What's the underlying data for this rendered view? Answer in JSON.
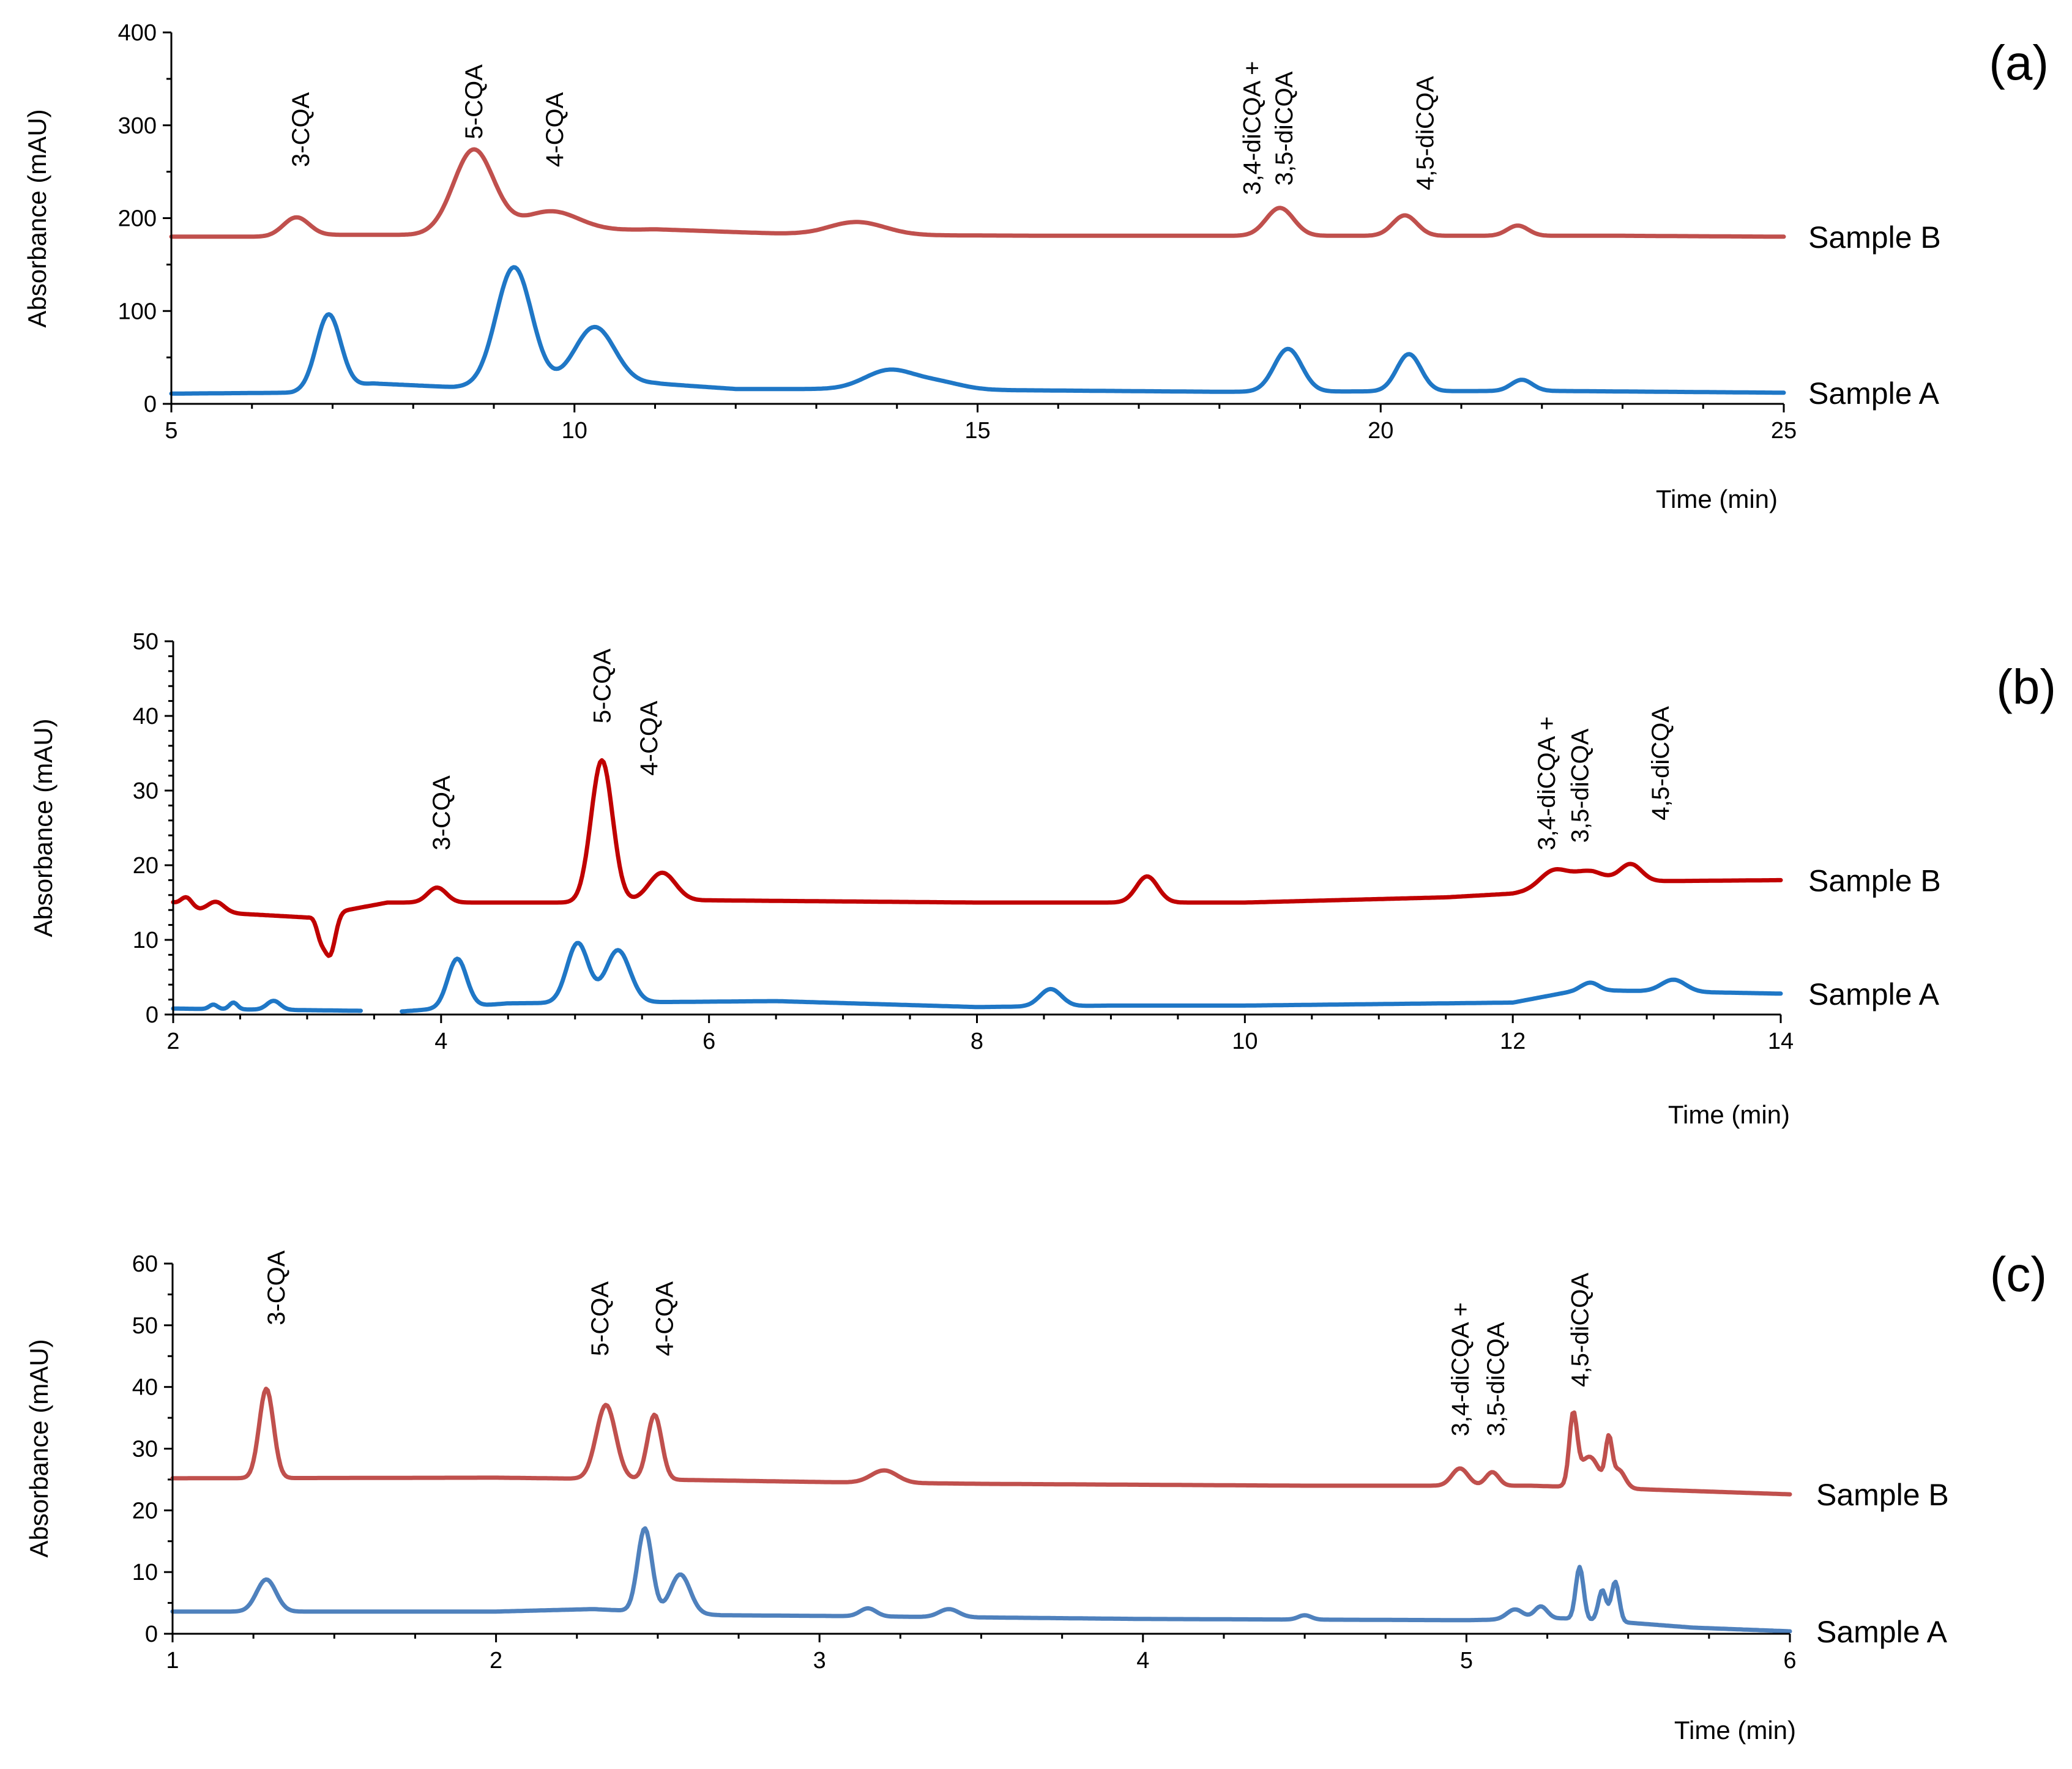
{
  "chart_data": [
    {
      "type": "line",
      "panel_label": "(a)",
      "xlabel": "Time (min)",
      "ylabel": "Absorbance (mAU)",
      "xlim": [
        5,
        25
      ],
      "ylim": [
        0,
        400
      ],
      "xticks": [
        5,
        10,
        15,
        20,
        25
      ],
      "yticks": [
        0,
        100,
        200,
        300,
        400
      ],
      "x_minor_step": 1,
      "y_minor_step": 50,
      "series": [
        {
          "name": "Sample B",
          "color": "#c0504d",
          "baseline": [
            [
              5,
              180
            ],
            [
              6.2,
              180
            ],
            [
              7,
              182
            ],
            [
              8,
              182
            ],
            [
              11,
              188
            ],
            [
              13,
              182
            ],
            [
              16,
              181
            ],
            [
              20,
              181
            ],
            [
              23,
              181
            ],
            [
              25,
              180
            ]
          ],
          "peaks": [
            {
              "t": 6.55,
              "h": 20,
              "w": 0.16
            },
            {
              "t": 8.75,
              "h": 90,
              "w": 0.25
            },
            {
              "t": 9.7,
              "h": 22,
              "w": 0.35
            },
            {
              "t": 13.5,
              "h": 14,
              "w": 0.35
            },
            {
              "t": 18.75,
              "h": 30,
              "w": 0.17
            },
            {
              "t": 20.3,
              "h": 22,
              "w": 0.15
            },
            {
              "t": 21.7,
              "h": 11,
              "w": 0.13
            }
          ]
        },
        {
          "name": "Sample A",
          "color": "#1f77c6",
          "baseline": [
            [
              5,
              11
            ],
            [
              6.5,
              12
            ],
            [
              7.5,
              22
            ],
            [
              8.5,
              18
            ],
            [
              11,
              22
            ],
            [
              12,
              16
            ],
            [
              13.5,
              16
            ],
            [
              15,
              15
            ],
            [
              18,
              13
            ],
            [
              22,
              14
            ],
            [
              25,
              12
            ]
          ],
          "peaks": [
            {
              "t": 6.95,
              "h": 80,
              "w": 0.15
            },
            {
              "t": 9.25,
              "h": 128,
              "w": 0.22
            },
            {
              "t": 10.25,
              "h": 62,
              "w": 0.25
            },
            {
              "t": 13.9,
              "h": 20,
              "w": 0.3
            },
            {
              "t": 14.5,
              "h": 8,
              "w": 0.3
            },
            {
              "t": 18.85,
              "h": 46,
              "w": 0.17
            },
            {
              "t": 20.35,
              "h": 40,
              "w": 0.15
            },
            {
              "t": 21.75,
              "h": 12,
              "w": 0.13
            }
          ]
        }
      ],
      "annotations": [
        {
          "text": "3-CQA",
          "x": 6.6,
          "y": 255
        },
        {
          "text": "5-CQA",
          "x": 8.75,
          "y": 285
        },
        {
          "text": "4-CQA",
          "x": 9.75,
          "y": 255
        },
        {
          "text": "3,4-diCQA +",
          "x": 18.4,
          "y": 225
        },
        {
          "text": "3,5-diCQA",
          "x": 18.8,
          "y": 235
        },
        {
          "text": "4,5-diCQA",
          "x": 20.55,
          "y": 230
        }
      ]
    },
    {
      "type": "line",
      "panel_label": "(b)",
      "xlabel": "Time (min)",
      "ylabel": "Absorbance (mAU)",
      "xlim": [
        2,
        14
      ],
      "ylim": [
        0,
        50
      ],
      "xticks": [
        2,
        4,
        6,
        8,
        10,
        12,
        14
      ],
      "yticks": [
        0,
        10,
        20,
        30,
        40,
        50
      ],
      "x_minor_step": 0.5,
      "y_minor_step": 2,
      "series": [
        {
          "name": "Sample B",
          "color": "#c00000",
          "baseline": [
            [
              2,
              15
            ],
            [
              2.2,
              14
            ],
            [
              2.5,
              13.5
            ],
            [
              3,
              13
            ],
            [
              3.3,
              14
            ],
            [
              3.6,
              15
            ],
            [
              5,
              15
            ],
            [
              6,
              15.3
            ],
            [
              8,
              15
            ],
            [
              9,
              15
            ],
            [
              10,
              15
            ],
            [
              11.5,
              15.7
            ],
            [
              12,
              16.2
            ],
            [
              12.6,
              17.8
            ],
            [
              14,
              18
            ]
          ],
          "peaks": [
            {
              "t": 2.1,
              "h": 1.2,
              "w": 0.04
            },
            {
              "t": 2.32,
              "h": 1.3,
              "w": 0.06
            },
            {
              "t": 3.1,
              "h": -2.5,
              "w": 0.03
            },
            {
              "t": 3.17,
              "h": -5.5,
              "w": 0.04
            },
            {
              "t": 3.97,
              "h": 2,
              "w": 0.07
            },
            {
              "t": 5.2,
              "h": 19,
              "w": 0.08
            },
            {
              "t": 5.65,
              "h": 3.8,
              "w": 0.1
            },
            {
              "t": 9.27,
              "h": 3.5,
              "w": 0.08
            },
            {
              "t": 12.3,
              "h": 2.2,
              "w": 0.1
            },
            {
              "t": 12.55,
              "h": 1.5,
              "w": 0.12
            },
            {
              "t": 12.88,
              "h": 2.3,
              "w": 0.08
            }
          ]
        },
        {
          "name": "Sample A",
          "color": "#1f77c6",
          "gap": [
            3.4,
            3.7
          ],
          "baseline": [
            [
              2,
              0.8
            ],
            [
              3.4,
              0.5
            ],
            [
              3.7,
              0.4
            ],
            [
              4.5,
              1.5
            ],
            [
              6.5,
              1.8
            ],
            [
              8,
              1
            ],
            [
              9,
              1.2
            ],
            [
              10,
              1.2
            ],
            [
              12,
              1.6
            ],
            [
              12.5,
              3.3
            ],
            [
              14,
              2.8
            ]
          ],
          "peaks": [
            {
              "t": 2.3,
              "h": 0.6,
              "w": 0.03
            },
            {
              "t": 2.45,
              "h": 0.9,
              "w": 0.03
            },
            {
              "t": 2.75,
              "h": 1.2,
              "w": 0.05
            },
            {
              "t": 4.12,
              "h": 6.5,
              "w": 0.07
            },
            {
              "t": 5.02,
              "h": 8,
              "w": 0.08
            },
            {
              "t": 5.32,
              "h": 7,
              "w": 0.09
            },
            {
              "t": 8.55,
              "h": 2.3,
              "w": 0.08
            },
            {
              "t": 12.58,
              "h": 1,
              "w": 0.06
            },
            {
              "t": 13.2,
              "h": 1.6,
              "w": 0.09
            }
          ]
        }
      ],
      "annotations": [
        {
          "text": "3-CQA",
          "x": 4.0,
          "y": 22
        },
        {
          "text": "5-CQA",
          "x": 5.2,
          "y": 39
        },
        {
          "text": "4-CQA",
          "x": 5.55,
          "y": 32
        },
        {
          "text": "3,4-diCQA +",
          "x": 12.25,
          "y": 22
        },
        {
          "text": "3,5-diCQA",
          "x": 12.5,
          "y": 23
        },
        {
          "text": "4,5-diCQA",
          "x": 13.1,
          "y": 26
        }
      ]
    },
    {
      "type": "line",
      "panel_label": "(c)",
      "xlabel": "Time (min)",
      "ylabel": "Absorbance (mAU)",
      "xlim": [
        1,
        6
      ],
      "ylim": [
        0,
        60
      ],
      "xticks": [
        1,
        2,
        3,
        4,
        5,
        6
      ],
      "yticks": [
        0,
        10,
        20,
        30,
        40,
        50,
        60
      ],
      "x_minor_step": 0.25,
      "y_minor_step": 5,
      "series": [
        {
          "name": "Sample B",
          "color": "#c0504d",
          "baseline": [
            [
              1,
              25.2
            ],
            [
              2,
              25.3
            ],
            [
              2.5,
              25
            ],
            [
              3,
              24.6
            ],
            [
              3.5,
              24.3
            ],
            [
              4.5,
              24
            ],
            [
              5.2,
              24
            ],
            [
              5.5,
              23.5
            ],
            [
              6,
              22.6
            ]
          ],
          "peaks": [
            {
              "t": 1.29,
              "h": 14.5,
              "w": 0.022
            },
            {
              "t": 2.34,
              "h": 12,
              "w": 0.03
            },
            {
              "t": 2.49,
              "h": 10.5,
              "w": 0.022
            },
            {
              "t": 3.2,
              "h": 2,
              "w": 0.04
            },
            {
              "t": 4.98,
              "h": 2.8,
              "w": 0.025
            },
            {
              "t": 5.08,
              "h": 2.2,
              "w": 0.02
            },
            {
              "t": 5.33,
              "h": 11,
              "w": 0.012
            },
            {
              "t": 5.38,
              "h": 5,
              "w": 0.03
            },
            {
              "t": 5.44,
              "h": 7,
              "w": 0.01
            },
            {
              "t": 5.47,
              "h": 3,
              "w": 0.02
            }
          ]
        },
        {
          "name": "Sample A",
          "color": "#4f81bd",
          "baseline": [
            [
              1,
              3.6
            ],
            [
              2,
              3.6
            ],
            [
              2.3,
              4
            ],
            [
              2.7,
              3
            ],
            [
              3,
              2.9
            ],
            [
              4,
              2.4
            ],
            [
              5,
              2.2
            ],
            [
              5.3,
              2.5
            ],
            [
              5.5,
              1.8
            ],
            [
              5.7,
              1
            ],
            [
              6,
              0.4
            ]
          ],
          "peaks": [
            {
              "t": 1.29,
              "h": 5.2,
              "w": 0.03
            },
            {
              "t": 2.46,
              "h": 13.5,
              "w": 0.022
            },
            {
              "t": 2.57,
              "h": 6.3,
              "w": 0.03
            },
            {
              "t": 3.15,
              "h": 1.3,
              "w": 0.025
            },
            {
              "t": 3.4,
              "h": 1.3,
              "w": 0.03
            },
            {
              "t": 4.5,
              "h": 0.7,
              "w": 0.02
            },
            {
              "t": 5.15,
              "h": 1.6,
              "w": 0.025
            },
            {
              "t": 5.23,
              "h": 2,
              "w": 0.02
            },
            {
              "t": 5.35,
              "h": 8.5,
              "w": 0.012
            },
            {
              "t": 5.42,
              "h": 5,
              "w": 0.012
            },
            {
              "t": 5.46,
              "h": 6.5,
              "w": 0.012
            }
          ]
        }
      ],
      "annotations": [
        {
          "text": "3-CQA",
          "x": 1.32,
          "y": 50
        },
        {
          "text": "5-CQA",
          "x": 2.32,
          "y": 45
        },
        {
          "text": "4-CQA",
          "x": 2.52,
          "y": 45
        },
        {
          "text": "3,4-diCQA +",
          "x": 4.98,
          "y": 32
        },
        {
          "text": "3,5-diCQA",
          "x": 5.09,
          "y": 32
        },
        {
          "text": "4,5-diCQA",
          "x": 5.35,
          "y": 40
        }
      ]
    }
  ]
}
